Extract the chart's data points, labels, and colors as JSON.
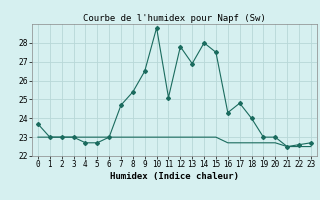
{
  "title": "Courbe de l'humidex pour Napf (Sw)",
  "xlabel": "Humidex (Indice chaleur)",
  "x": [
    0,
    1,
    2,
    3,
    4,
    5,
    6,
    7,
    8,
    9,
    10,
    11,
    12,
    13,
    14,
    15,
    16,
    17,
    18,
    19,
    20,
    21,
    22,
    23
  ],
  "y_main": [
    23.7,
    23.0,
    23.0,
    23.0,
    22.7,
    22.7,
    23.0,
    24.7,
    25.4,
    26.5,
    28.8,
    25.1,
    27.8,
    26.9,
    28.0,
    27.5,
    24.3,
    24.8,
    24.0,
    23.0,
    23.0,
    22.5,
    22.6,
    22.7
  ],
  "y_flat": [
    23.0,
    23.0,
    23.0,
    23.0,
    23.0,
    23.0,
    23.0,
    23.0,
    23.0,
    23.0,
    23.0,
    23.0,
    23.0,
    23.0,
    23.0,
    23.0,
    22.7,
    22.7,
    22.7,
    22.7,
    22.7,
    22.5,
    22.5,
    22.5
  ],
  "line_color": "#1a6b5e",
  "bg_color": "#d6f0f0",
  "grid_color": "#b8d8d8",
  "ylim": [
    22.0,
    29.0
  ],
  "yticks": [
    22,
    23,
    24,
    25,
    26,
    27,
    28
  ],
  "title_fontsize": 6.5,
  "label_fontsize": 6.5,
  "tick_fontsize": 5.5
}
